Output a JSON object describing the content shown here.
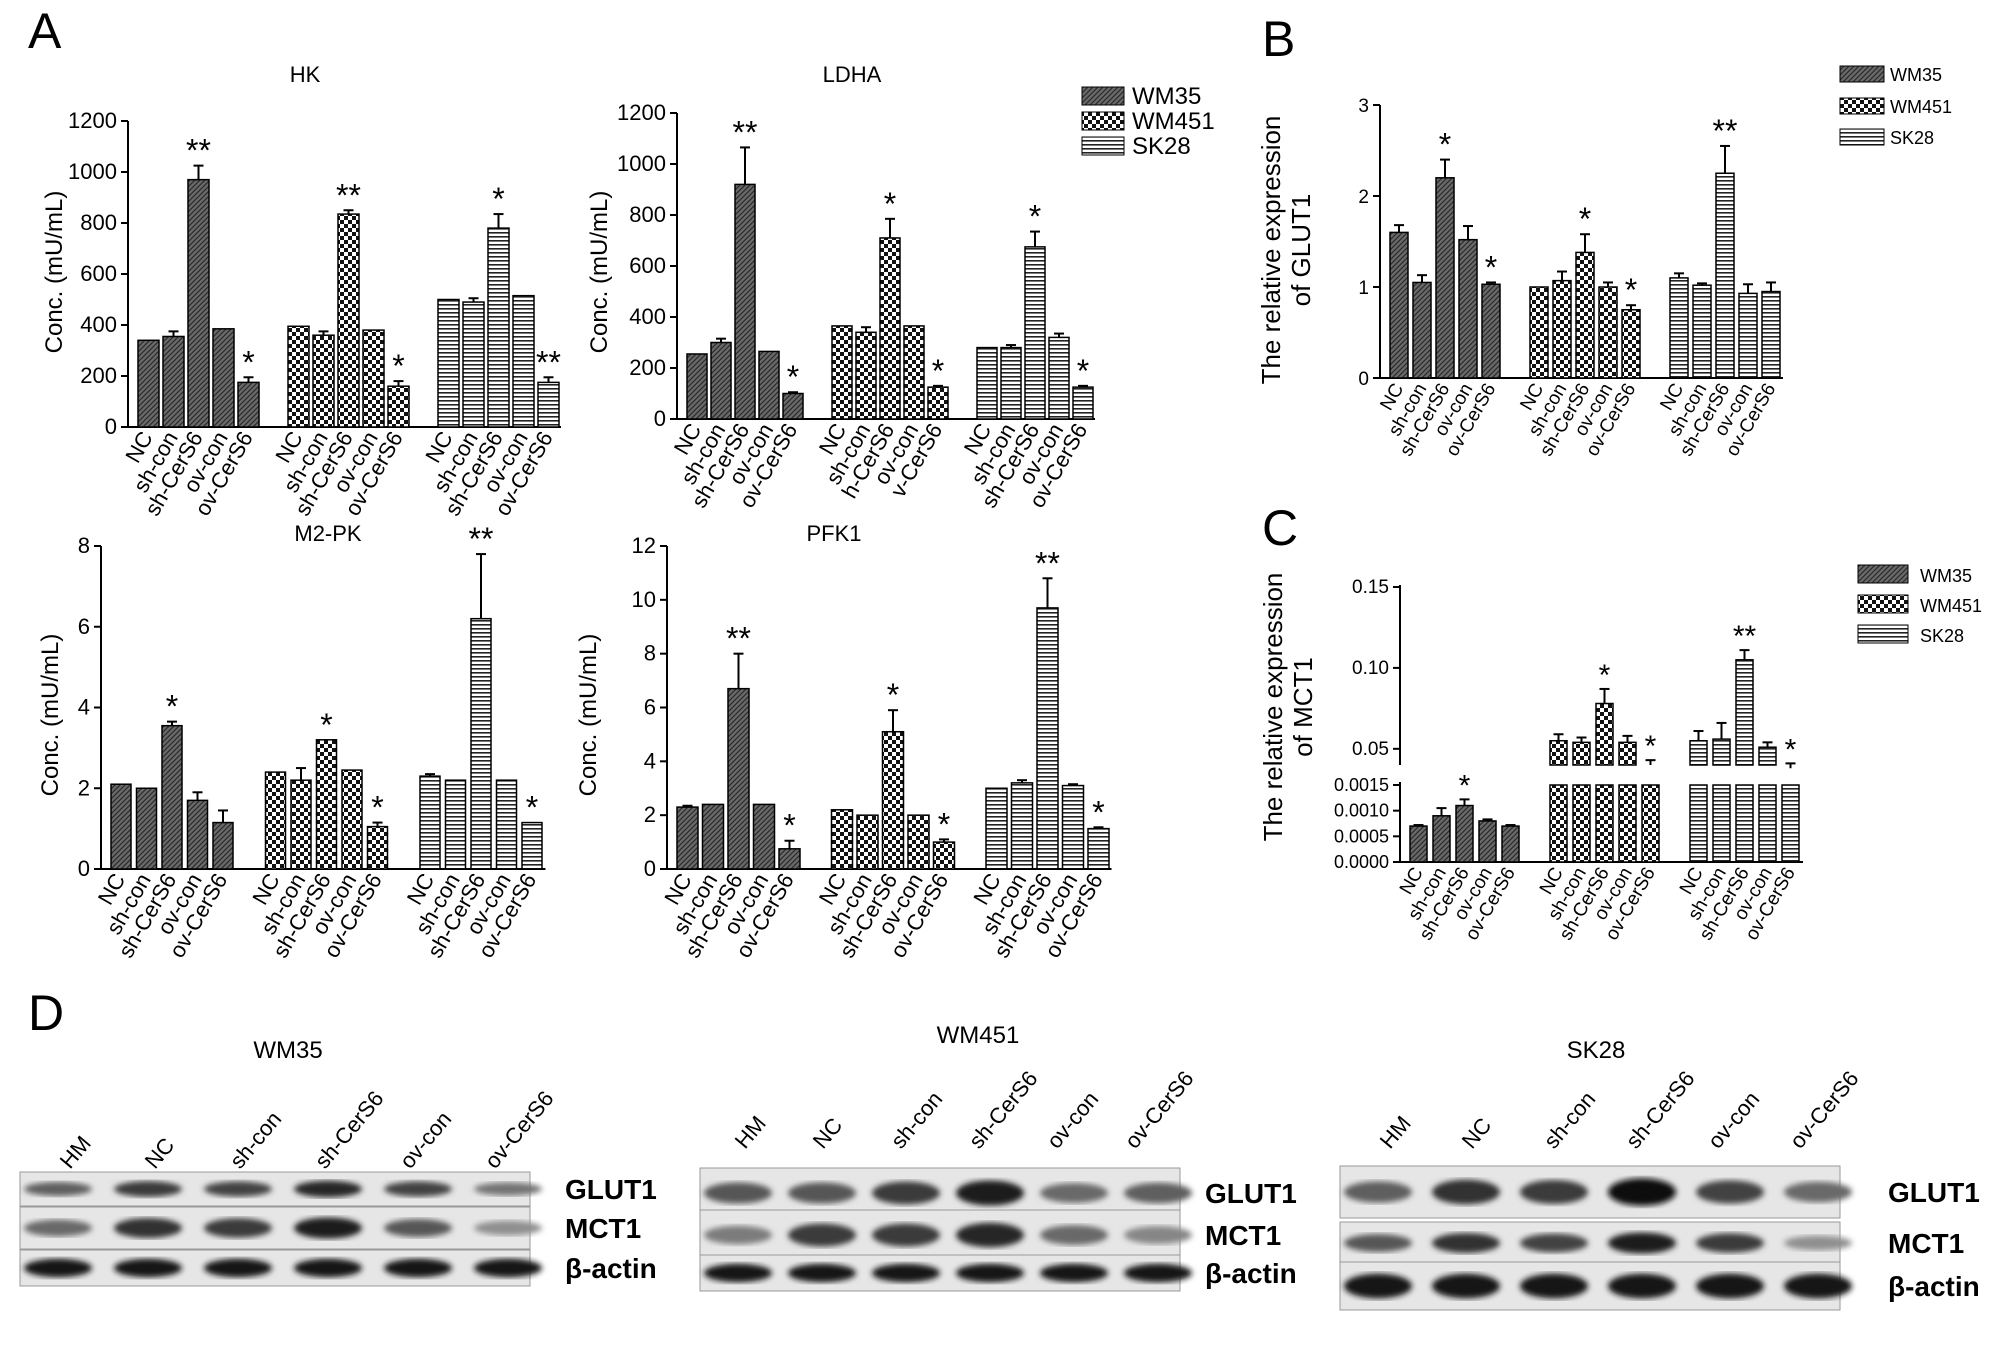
{
  "panel_letters": [
    "A",
    "B",
    "C",
    "D"
  ],
  "legend_series": [
    "WM35",
    "WM451",
    "SK28"
  ],
  "chart_data": [
    {
      "type": "bar",
      "panel": "A",
      "title": "HK",
      "ylabel": "Conc. (mU/mL)",
      "ylim": [
        0,
        1200
      ],
      "yticks": [
        0,
        200,
        400,
        600,
        800,
        1000,
        1200
      ],
      "groups": [
        {
          "series": "WM35",
          "categories": [
            "NC",
            "sh-con",
            "sh-CerS6",
            "ov-con",
            "ov-CerS6"
          ],
          "values": [
            340,
            355,
            970,
            385,
            175
          ],
          "errors": [
            0,
            20,
            55,
            0,
            20
          ],
          "stars": [
            "",
            "",
            "**",
            "",
            "*"
          ]
        },
        {
          "series": "WM451",
          "categories": [
            "NC",
            "sh-con",
            "sh-CerS6",
            "ov-con",
            "ov-CerS6"
          ],
          "values": [
            395,
            360,
            835,
            380,
            160
          ],
          "errors": [
            0,
            15,
            15,
            0,
            20
          ],
          "stars": [
            "",
            "",
            "**",
            "",
            "*"
          ]
        },
        {
          "series": "SK28",
          "categories": [
            "NC",
            "sh-con",
            "sh-CerS6",
            "ov-con",
            "ov-CerS6"
          ],
          "values": [
            500,
            490,
            780,
            515,
            175
          ],
          "errors": [
            0,
            15,
            55,
            0,
            20
          ],
          "stars": [
            "",
            "",
            "*",
            "",
            "**"
          ]
        }
      ]
    },
    {
      "type": "bar",
      "panel": "A",
      "title": "LDHA",
      "ylabel": "Conc. (mU/mL)",
      "ylim": [
        0,
        1200
      ],
      "yticks": [
        0,
        200,
        400,
        600,
        800,
        1000,
        1200
      ],
      "groups": [
        {
          "series": "WM35",
          "categories": [
            "NC",
            "sh-con",
            "sh-CerS6",
            "ov-con",
            "ov-CerS6"
          ],
          "values": [
            255,
            300,
            920,
            265,
            100
          ],
          "errors": [
            0,
            15,
            145,
            0,
            5
          ],
          "stars": [
            "",
            "",
            "**",
            "",
            "*"
          ]
        },
        {
          "series": "WM451",
          "categories": [
            "NC",
            "sh-con",
            "h-CerS6",
            "ov-con",
            "v-CerS6"
          ],
          "values": [
            365,
            340,
            710,
            365,
            125
          ],
          "errors": [
            0,
            20,
            75,
            0,
            5
          ],
          "stars": [
            "",
            "",
            "*",
            "",
            "*"
          ]
        },
        {
          "series": "SK28",
          "categories": [
            "NC",
            "sh-con",
            "sh-CerS6",
            "ov-con",
            "ov-CerS6"
          ],
          "values": [
            280,
            280,
            675,
            320,
            125
          ],
          "errors": [
            0,
            10,
            60,
            15,
            5
          ],
          "stars": [
            "",
            "",
            "*",
            "",
            "*"
          ]
        }
      ]
    },
    {
      "type": "bar",
      "panel": "A",
      "title": "M2-PK",
      "ylabel": "Conc. (mU/mL)",
      "ylim": [
        0,
        8
      ],
      "yticks": [
        0,
        2,
        4,
        6,
        8
      ],
      "groups": [
        {
          "series": "WM35",
          "categories": [
            "NC",
            "sh-con",
            "sh-CerS6",
            "ov-con",
            "ov-CerS6"
          ],
          "values": [
            2.1,
            2.0,
            3.55,
            1.7,
            1.15
          ],
          "errors": [
            0,
            0,
            0.1,
            0.2,
            0.3
          ],
          "stars": [
            "",
            "",
            "*",
            "",
            ""
          ]
        },
        {
          "series": "WM451",
          "categories": [
            "NC",
            "sh-con",
            "sh-CerS6",
            "ov-con",
            "ov-CerS6"
          ],
          "values": [
            2.4,
            2.2,
            3.2,
            2.45,
            1.05
          ],
          "errors": [
            0,
            0.3,
            0,
            0,
            0.1
          ],
          "stars": [
            "",
            "",
            "*",
            "",
            "*"
          ]
        },
        {
          "series": "SK28",
          "categories": [
            "NC",
            "sh-con",
            "sh-CerS6",
            "ov-con",
            "ov-CerS6"
          ],
          "values": [
            2.3,
            2.2,
            6.2,
            2.2,
            1.15
          ],
          "errors": [
            0.05,
            0,
            1.6,
            0,
            0
          ],
          "stars": [
            "",
            "",
            "**",
            "",
            "*"
          ]
        }
      ]
    },
    {
      "type": "bar",
      "panel": "A",
      "title": "PFK1",
      "ylabel": "Conc. (mU/mL)",
      "ylim": [
        0,
        12
      ],
      "yticks": [
        0,
        2,
        4,
        6,
        8,
        10,
        12
      ],
      "groups": [
        {
          "series": "WM35",
          "categories": [
            "NC",
            "sh-con",
            "sh-CerS6",
            "ov-con",
            "ov-CerS6"
          ],
          "values": [
            2.3,
            2.4,
            6.7,
            2.4,
            0.75
          ],
          "errors": [
            0.05,
            0,
            1.3,
            0,
            0.3
          ],
          "stars": [
            "",
            "",
            "**",
            "",
            "*"
          ]
        },
        {
          "series": "WM451",
          "categories": [
            "NC",
            "sh-con",
            "sh-CerS6",
            "ov-con",
            "ov-CerS6"
          ],
          "values": [
            2.2,
            2.0,
            5.1,
            2.0,
            1.0
          ],
          "errors": [
            0,
            0,
            0.8,
            0,
            0.1
          ],
          "stars": [
            "",
            "",
            "*",
            "",
            "*"
          ]
        },
        {
          "series": "SK28",
          "categories": [
            "NC",
            "sh-con",
            "sh-CerS6",
            "ov-con",
            "ov-CerS6"
          ],
          "values": [
            3.0,
            3.2,
            9.7,
            3.1,
            1.5
          ],
          "errors": [
            0,
            0.1,
            1.1,
            0.05,
            0.05
          ],
          "stars": [
            "",
            "",
            "**",
            "",
            "*"
          ]
        }
      ]
    },
    {
      "type": "bar",
      "panel": "B",
      "title": "",
      "ylabel": "The relative expression of GLUT1",
      "ylim": [
        0,
        3
      ],
      "yticks": [
        0,
        1,
        2,
        3
      ],
      "groups": [
        {
          "series": "WM35",
          "categories": [
            "NC",
            "sh-con",
            "sh-CerS6",
            "ov-con",
            "ov-CerS6"
          ],
          "values": [
            1.6,
            1.05,
            2.2,
            1.52,
            1.03
          ],
          "errors": [
            0.08,
            0.08,
            0.2,
            0.15,
            0.02
          ],
          "stars": [
            "",
            "",
            "*",
            "",
            "*"
          ]
        },
        {
          "series": "WM451",
          "categories": [
            "NC",
            "sh-con",
            "sh-CerS6",
            "ov-con",
            "ov-CerS6"
          ],
          "values": [
            1.0,
            1.07,
            1.38,
            1.0,
            0.75
          ],
          "errors": [
            0,
            0.1,
            0.2,
            0.05,
            0.05
          ],
          "stars": [
            "",
            "",
            "*",
            "",
            "*"
          ]
        },
        {
          "series": "SK28",
          "categories": [
            "NC",
            "sh-con",
            "sh-CerS6",
            "ov-con",
            "ov-CerS6"
          ],
          "values": [
            1.1,
            1.02,
            2.25,
            0.93,
            0.95
          ],
          "errors": [
            0.05,
            0.02,
            0.3,
            0.1,
            0.1
          ],
          "stars": [
            "",
            "",
            "**",
            "",
            ""
          ]
        }
      ]
    },
    {
      "type": "bar",
      "panel": "C",
      "title": "",
      "ylabel": "The relative expression of MCT1",
      "axis_break": true,
      "yticks_upper": [
        "0.05",
        "0.10",
        "0.15"
      ],
      "yticks_lower": [
        "0.0000",
        "0.0005",
        "0.0010",
        "0.0015"
      ],
      "groups": [
        {
          "series": "WM35",
          "categories": [
            "NC",
            "sh-con",
            "sh-CerS6",
            "ov-con",
            "ov-CerS6"
          ],
          "values": [
            0.0007,
            0.0009,
            0.0011,
            0.0008,
            0.0007
          ],
          "errors": [
            2e-05,
            0.00015,
            0.00012,
            3e-05,
            2e-05
          ],
          "stars": [
            "",
            "",
            "*",
            "",
            ""
          ]
        },
        {
          "series": "WM451",
          "categories": [
            "NC",
            "sh-con",
            "sh-CerS6",
            "ov-con",
            "ov-CerS6"
          ],
          "values": [
            0.055,
            0.054,
            0.078,
            0.054,
            0.04
          ],
          "errors": [
            0.004,
            0.003,
            0.009,
            0.004,
            0.003
          ],
          "stars": [
            "",
            "",
            "*",
            "",
            "*"
          ]
        },
        {
          "series": "SK28",
          "categories": [
            "NC",
            "sh-con",
            "sh-CerS6",
            "ov-con",
            "ov-CerS6"
          ],
          "values": [
            0.055,
            0.056,
            0.105,
            0.051,
            0.038
          ],
          "errors": [
            0.006,
            0.01,
            0.006,
            0.003,
            0.003
          ],
          "stars": [
            "",
            "",
            "**",
            "",
            "*"
          ]
        }
      ]
    }
  ],
  "blots": [
    {
      "title": "WM35",
      "lanes": [
        "HM",
        "NC",
        "sh-con",
        "sh-CerS6",
        "ov-con",
        "ov-CerS6"
      ],
      "rows": [
        "GLUT1",
        "MCT1",
        "β-actin"
      ],
      "intensity": [
        [
          0.55,
          0.75,
          0.7,
          0.85,
          0.7,
          0.45
        ],
        [
          0.5,
          0.8,
          0.75,
          0.9,
          0.6,
          0.3
        ],
        [
          0.95,
          0.95,
          0.95,
          0.95,
          0.95,
          0.95
        ]
      ]
    },
    {
      "title": "WM451",
      "lanes": [
        "HM",
        "NC",
        "sh-con",
        "sh-CerS6",
        "ov-con",
        "ov-CerS6"
      ],
      "rows": [
        "GLUT1",
        "MCT1",
        "β-actin"
      ],
      "intensity": [
        [
          0.6,
          0.6,
          0.75,
          0.9,
          0.5,
          0.55
        ],
        [
          0.4,
          0.75,
          0.75,
          0.85,
          0.5,
          0.35
        ],
        [
          0.95,
          0.95,
          0.95,
          0.95,
          0.95,
          0.95
        ]
      ]
    },
    {
      "title": "SK28",
      "lanes": [
        "HM",
        "NC",
        "sh-con",
        "sh-CerS6",
        "ov-con",
        "ov-CerS6"
      ],
      "rows": [
        "GLUT1",
        "MCT1",
        "β-actin"
      ],
      "intensity": [
        [
          0.55,
          0.8,
          0.75,
          1.0,
          0.7,
          0.5
        ],
        [
          0.6,
          0.8,
          0.7,
          0.9,
          0.75,
          0.3
        ],
        [
          0.95,
          0.95,
          0.95,
          0.95,
          0.95,
          0.95
        ]
      ]
    }
  ],
  "colors": {
    "bar_stroke": "#000000",
    "bar_fill": "#555555",
    "text": "#000000"
  }
}
